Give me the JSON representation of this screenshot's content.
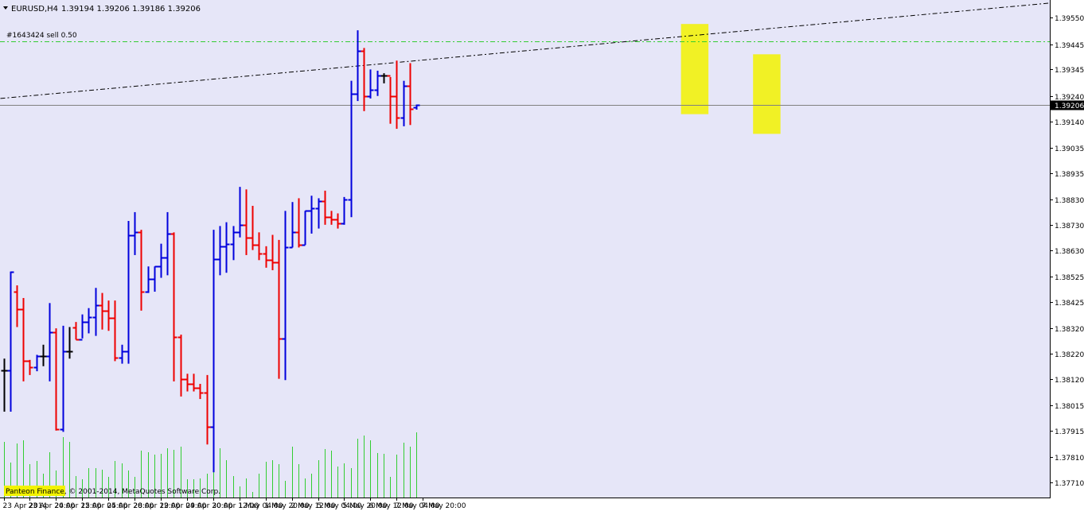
{
  "header": {
    "symbol_timeframe": "EURUSD,H4",
    "ohlc": "1.39194 1.39206 1.39186 1.39206"
  },
  "order_label": "#1643424 sell 0.50",
  "current_price_label": "1.39206",
  "footer_text": "Panteon Finance, © 2001-2014, MetaQuotes Software Corp.",
  "colors": {
    "background": "#e6e6f8",
    "bull": "#0000dd",
    "bear": "#ee0000",
    "doji": "#000000",
    "volume": "#32cd32",
    "order_line": "#32cd32",
    "trend_line": "#000000",
    "highlight": "#f2f200",
    "price_line": "#808080"
  },
  "chart_data": {
    "type": "ohlc",
    "y_range": [
      1.3765,
      1.3962
    ],
    "y_ticks": [
      "1.39550",
      "1.39445",
      "1.39345",
      "1.39240",
      "1.39140",
      "1.39035",
      "1.38935",
      "1.38830",
      "1.38730",
      "1.38630",
      "1.38525",
      "1.38425",
      "1.38320",
      "1.38220",
      "1.38120",
      "1.38015",
      "1.37915",
      "1.37810",
      "1.37710"
    ],
    "x_ticks": [
      "23 Apr 2014",
      "23 Apr 20:00",
      "24 Apr 12:00",
      "25 Apr 04:00",
      "25 Apr 20:00",
      "28 Apr 12:00",
      "29 Apr 04:00",
      "29 Apr 20:00",
      "30 Apr 12:00",
      "1 May 04:00",
      "1 May 20:00",
      "2 May 12:00",
      "5 May 04:00",
      "5 May 20:00",
      "6 May 12:00",
      "7 May 04:00",
      "7 May 20:00"
    ],
    "order_level": 1.39455,
    "current_price": 1.39206,
    "trend_line": [
      [
        0,
        1.3923
      ],
      [
        122.6,
        1.3952
      ]
    ],
    "highlight_boxes": [
      [
        105,
        107,
        1.39525,
        1.39168
      ],
      [
        116,
        118,
        1.39405,
        1.3909
      ]
    ],
    "bars": [
      [
        1.38155,
        1.382,
        1.3799,
        1.38155
      ],
      [
        1.38155,
        1.38545,
        1.3799,
        1.38545
      ],
      [
        1.38465,
        1.3849,
        1.38325,
        1.38395
      ],
      [
        1.38395,
        1.3844,
        1.3811,
        1.3819
      ],
      [
        1.3819,
        1.38195,
        1.38135,
        1.38165
      ],
      [
        1.38165,
        1.38215,
        1.3815,
        1.3821
      ],
      [
        1.3821,
        1.38255,
        1.3817,
        1.3821
      ],
      [
        1.3821,
        1.3842,
        1.3811,
        1.38305
      ],
      [
        1.38305,
        1.3832,
        1.37915,
        1.3792
      ],
      [
        1.3792,
        1.3833,
        1.3791,
        1.3823
      ],
      [
        1.3823,
        1.38325,
        1.382,
        1.3823
      ],
      [
        1.38325,
        1.38345,
        1.38275,
        1.38275
      ],
      [
        1.38275,
        1.38375,
        1.3828,
        1.38345
      ],
      [
        1.38345,
        1.384,
        1.383,
        1.38365
      ],
      [
        1.38365,
        1.3848,
        1.3829,
        1.3841
      ],
      [
        1.3841,
        1.3846,
        1.38315,
        1.3839
      ],
      [
        1.3839,
        1.3843,
        1.3831,
        1.3836
      ],
      [
        1.3836,
        1.3843,
        1.3819,
        1.38205
      ],
      [
        1.38205,
        1.38255,
        1.3818,
        1.3823
      ],
      [
        1.3823,
        1.38745,
        1.3818,
        1.3869
      ],
      [
        1.3869,
        1.3878,
        1.3861,
        1.387
      ],
      [
        1.387,
        1.3871,
        1.3839,
        1.38465
      ],
      [
        1.38465,
        1.38565,
        1.3846,
        1.38515
      ],
      [
        1.38515,
        1.38565,
        1.38465,
        1.38565
      ],
      [
        1.38565,
        1.38655,
        1.3852,
        1.386
      ],
      [
        1.386,
        1.3878,
        1.3853,
        1.38695
      ],
      [
        1.38695,
        1.387,
        1.3811,
        1.38285
      ],
      [
        1.38285,
        1.38295,
        1.3805,
        1.3812
      ],
      [
        1.3812,
        1.3814,
        1.3807,
        1.381
      ],
      [
        1.381,
        1.3814,
        1.3807,
        1.38085
      ],
      [
        1.38085,
        1.381,
        1.3804,
        1.38065
      ],
      [
        1.38065,
        1.38135,
        1.3786,
        1.3793
      ],
      [
        1.3793,
        1.3871,
        1.3775,
        1.38595
      ],
      [
        1.38595,
        1.38725,
        1.3853,
        1.38645
      ],
      [
        1.38645,
        1.3874,
        1.3854,
        1.38655
      ],
      [
        1.38655,
        1.38725,
        1.3859,
        1.387
      ],
      [
        1.387,
        1.3888,
        1.3868,
        1.3873
      ],
      [
        1.3873,
        1.3887,
        1.3861,
        1.3868
      ],
      [
        1.3868,
        1.38805,
        1.3863,
        1.3865
      ],
      [
        1.3865,
        1.387,
        1.3859,
        1.38615
      ],
      [
        1.38615,
        1.38645,
        1.3856,
        1.3859
      ],
      [
        1.3859,
        1.3869,
        1.3855,
        1.3858
      ],
      [
        1.3858,
        1.3867,
        1.3812,
        1.3828
      ],
      [
        1.3828,
        1.38785,
        1.38115,
        1.3864
      ],
      [
        1.3864,
        1.3882,
        1.3864,
        1.387
      ],
      [
        1.387,
        1.38835,
        1.3864,
        1.3865
      ],
      [
        1.3865,
        1.38785,
        1.3865,
        1.38785
      ],
      [
        1.38785,
        1.38845,
        1.38695,
        1.38795
      ],
      [
        1.38795,
        1.38835,
        1.38715,
        1.38825
      ],
      [
        1.38825,
        1.38865,
        1.3873,
        1.3876
      ],
      [
        1.3876,
        1.38785,
        1.3873,
        1.3875
      ],
      [
        1.3875,
        1.38775,
        1.38715,
        1.38735
      ],
      [
        1.38735,
        1.3884,
        1.3873,
        1.3883
      ],
      [
        1.3883,
        1.393,
        1.3876,
        1.3925
      ],
      [
        1.3925,
        1.395,
        1.3922,
        1.3942
      ],
      [
        1.3942,
        1.3943,
        1.3918,
        1.3924
      ],
      [
        1.3924,
        1.39345,
        1.3923,
        1.39265
      ],
      [
        1.39265,
        1.3934,
        1.3924,
        1.3932
      ],
      [
        1.3932,
        1.3933,
        1.3929,
        1.3932
      ],
      [
        1.3932,
        1.39315,
        1.3913,
        1.3924
      ],
      [
        1.3924,
        1.3938,
        1.3911,
        1.39155
      ],
      [
        1.39155,
        1.393,
        1.3912,
        1.3928
      ],
      [
        1.3928,
        1.3937,
        1.39125,
        1.3919
      ],
      [
        1.39194,
        1.39206,
        1.39186,
        1.39206
      ]
    ],
    "volume_pct": [
      70,
      44,
      68,
      72,
      42,
      46,
      30,
      57,
      34,
      76,
      70,
      27,
      23,
      37,
      37,
      35,
      26,
      46,
      43,
      34,
      26,
      59,
      57,
      54,
      55,
      62,
      60,
      64,
      23,
      23,
      24,
      30,
      32,
      62,
      47,
      27,
      14,
      24,
      7,
      30,
      45,
      47,
      42,
      21,
      64,
      42,
      24,
      30,
      47,
      61,
      59,
      39,
      43,
      37,
      74,
      78,
      72,
      56,
      55,
      26,
      54,
      69,
      64,
      82
    ]
  }
}
